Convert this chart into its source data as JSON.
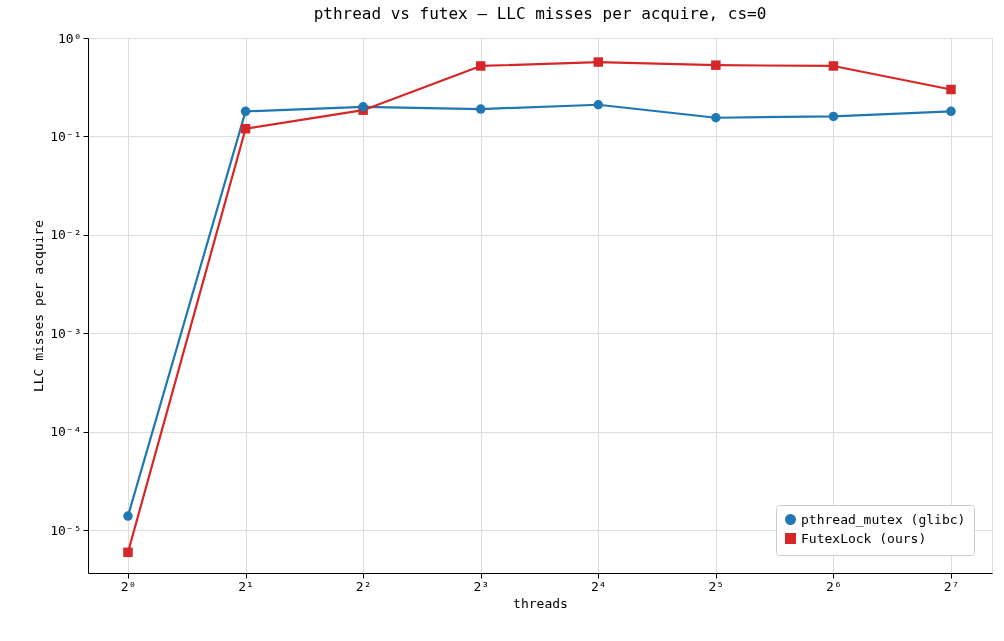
{
  "chart_data": {
    "type": "line",
    "title": "pthread vs futex — LLC misses per acquire, cs=0",
    "xlabel": "threads",
    "ylabel": "LLC misses per acquire",
    "x": [
      1,
      2,
      4,
      8,
      16,
      32,
      64,
      128
    ],
    "series": [
      {
        "name": "pthread_mutex (glibc)",
        "color": "#1f77b4",
        "marker": "circle",
        "values": [
          1.4e-05,
          0.18,
          0.2,
          0.19,
          0.21,
          0.155,
          0.16,
          0.18
        ]
      },
      {
        "name": "FutexLock (ours)",
        "color": "#d62728",
        "marker": "square",
        "values": [
          6e-06,
          0.12,
          0.185,
          0.52,
          0.57,
          0.53,
          0.52,
          0.3
        ]
      }
    ],
    "log": "xy",
    "xlim": [
      0.79,
      163
    ],
    "ylim": [
      3.7e-06,
      1
    ],
    "xticks": [
      {
        "value": 1,
        "label": "2⁰"
      },
      {
        "value": 2,
        "label": "2¹"
      },
      {
        "value": 4,
        "label": "2²"
      },
      {
        "value": 8,
        "label": "2³"
      },
      {
        "value": 16,
        "label": "2⁴"
      },
      {
        "value": 32,
        "label": "2⁵"
      },
      {
        "value": 64,
        "label": "2⁶"
      },
      {
        "value": 128,
        "label": "2⁷"
      }
    ],
    "yticks": [
      {
        "value": 1e-05,
        "label": "10⁻⁵"
      },
      {
        "value": 0.0001,
        "label": "10⁻⁴"
      },
      {
        "value": 0.001,
        "label": "10⁻³"
      },
      {
        "value": 0.01,
        "label": "10⁻²"
      },
      {
        "value": 0.1,
        "label": "10⁻¹"
      },
      {
        "value": 1,
        "label": "10⁰"
      }
    ],
    "grid": true,
    "legend": "bottom right",
    "line_style": "solid"
  }
}
